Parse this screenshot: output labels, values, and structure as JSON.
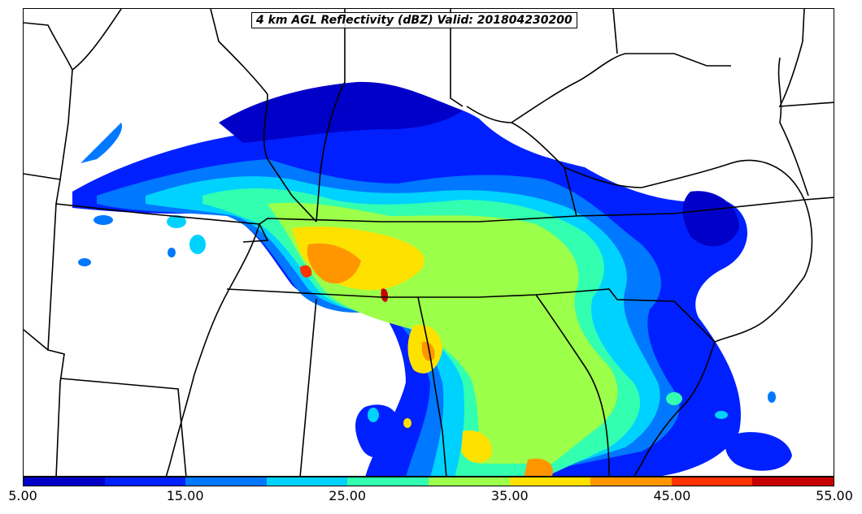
{
  "title": "4 km AGL Reflectivity (dBZ) Valid: 201804230200",
  "colorbar": {
    "colors": [
      "#0000c8",
      "#0020ff",
      "#0078ff",
      "#00d2ff",
      "#32ffb0",
      "#9cff4a",
      "#ffe100",
      "#ff9600",
      "#ff3200",
      "#c80000"
    ],
    "labels": [
      "5.00",
      "15.00",
      "25.00",
      "35.00",
      "45.00",
      "55.00"
    ]
  },
  "chart_data": {
    "type": "map",
    "field": "reflectivity",
    "units": "dBZ",
    "level": "4 km AGL",
    "valid_time": "201804230200",
    "color_levels": [
      5,
      10,
      15,
      20,
      25,
      30,
      35,
      40,
      45,
      50,
      55
    ]
  }
}
